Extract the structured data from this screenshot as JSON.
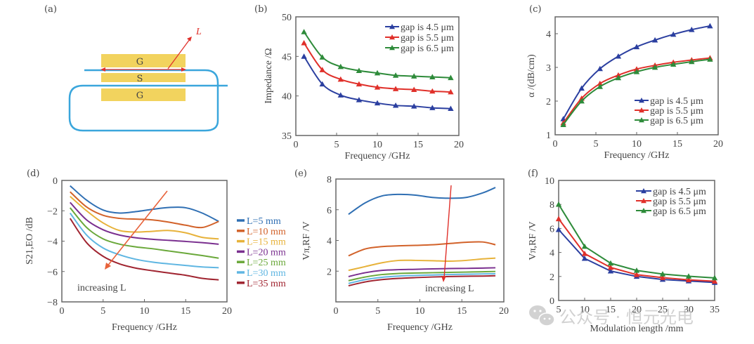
{
  "figure": {
    "panel_a": {
      "label": "(a)",
      "electrodes": [
        "G",
        "S",
        "G"
      ],
      "length_label": "L",
      "colors": {
        "electrode": "#f2d35e",
        "waveguide": "#3aa6dc",
        "arrow": "#e0302a"
      }
    },
    "watermark": {
      "text": "公众号 · 恒元光电",
      "icon": "wechat-icon"
    }
  },
  "chart_data": [
    {
      "id": "b",
      "panel_label": "(b)",
      "type": "line",
      "title": "",
      "xlabel": "Frequency /GHz",
      "ylabel": "Impedance /Ω",
      "xlim": [
        0,
        20
      ],
      "ylim": [
        35,
        50
      ],
      "xticks": [
        0,
        5,
        10,
        15,
        20
      ],
      "yticks": [
        35,
        40,
        45,
        50
      ],
      "legend_position": "top-right",
      "marker": "triangle",
      "x": [
        1,
        3.25,
        5.5,
        7.75,
        10,
        12.25,
        14.5,
        16.75,
        19
      ],
      "series": [
        {
          "name": "gap is 4.5 μm",
          "color": "#2b3fa0",
          "values": [
            45.0,
            41.5,
            40.1,
            39.5,
            39.1,
            38.8,
            38.7,
            38.5,
            38.4
          ]
        },
        {
          "name": "gap is 5.5 μm",
          "color": "#e0302a",
          "values": [
            46.7,
            43.3,
            42.1,
            41.5,
            41.1,
            40.9,
            40.8,
            40.6,
            40.5
          ]
        },
        {
          "name": "gap is 6.5 μm",
          "color": "#2e8b3a",
          "values": [
            48.1,
            44.9,
            43.7,
            43.2,
            42.9,
            42.6,
            42.5,
            42.4,
            42.3
          ]
        }
      ]
    },
    {
      "id": "c",
      "panel_label": "(c)",
      "type": "line",
      "title": "",
      "xlabel": "Frequency /GHz",
      "ylabel": "α /(dB/cm)",
      "xlim": [
        0,
        20
      ],
      "ylim": [
        1,
        4.5
      ],
      "xticks": [
        0,
        5,
        10,
        15,
        20
      ],
      "yticks": [
        1,
        2,
        3,
        4
      ],
      "legend_position": "bottom-right",
      "marker": "triangle",
      "x": [
        1,
        3.25,
        5.5,
        7.75,
        10,
        12.25,
        14.5,
        16.75,
        19
      ],
      "series": [
        {
          "name": "gap is 4.5 μm",
          "color": "#2b3fa0",
          "values": [
            1.47,
            2.38,
            2.96,
            3.33,
            3.61,
            3.81,
            3.98,
            4.12,
            4.23
          ]
        },
        {
          "name": "gap is 5.5 μm",
          "color": "#e0302a",
          "values": [
            1.35,
            2.08,
            2.52,
            2.77,
            2.95,
            3.06,
            3.15,
            3.22,
            3.28
          ]
        },
        {
          "name": "gap is 6.5 μm",
          "color": "#2e8b3a",
          "values": [
            1.3,
            2.0,
            2.43,
            2.69,
            2.87,
            3.0,
            3.09,
            3.17,
            3.24
          ]
        }
      ]
    },
    {
      "id": "d",
      "panel_label": "(d)",
      "type": "line",
      "title": "",
      "xlabel": "Frequency /GHz",
      "ylabel": "S21,EO /dB",
      "xlim": [
        0,
        20
      ],
      "ylim": [
        -8,
        0
      ],
      "xticks": [
        0,
        5,
        10,
        15,
        20
      ],
      "yticks": [
        -8,
        -6,
        -4,
        -2,
        0
      ],
      "legend_position": "outside-right",
      "annotation": "increasing L",
      "x": [
        1,
        3,
        5,
        7,
        9,
        11,
        13,
        15,
        17,
        19
      ],
      "series": [
        {
          "name": "L=5 mm",
          "color": "#2f6fb3",
          "values": [
            -0.35,
            -1.3,
            -1.95,
            -2.15,
            -2.05,
            -1.9,
            -1.78,
            -1.8,
            -2.15,
            -2.7
          ]
        },
        {
          "name": "L=10 mm",
          "color": "#d2622a",
          "values": [
            -0.75,
            -1.75,
            -2.3,
            -2.5,
            -2.55,
            -2.6,
            -2.75,
            -2.95,
            -3.1,
            -2.7
          ]
        },
        {
          "name": "L=15 mm",
          "color": "#e7b23a",
          "values": [
            -1.05,
            -2.0,
            -2.8,
            -3.3,
            -3.4,
            -3.35,
            -3.3,
            -3.45,
            -3.75,
            -3.85
          ]
        },
        {
          "name": "L=20 mm",
          "color": "#7a2f8f",
          "values": [
            -1.45,
            -2.6,
            -3.25,
            -3.6,
            -3.78,
            -3.88,
            -3.95,
            -4.02,
            -4.1,
            -4.2
          ]
        },
        {
          "name": "L=25 mm",
          "color": "#6aa83a",
          "values": [
            -1.8,
            -3.1,
            -3.85,
            -4.2,
            -4.38,
            -4.5,
            -4.65,
            -4.8,
            -4.95,
            -5.12
          ]
        },
        {
          "name": "L=30 mm",
          "color": "#5fb6e2",
          "values": [
            -2.15,
            -3.6,
            -4.45,
            -4.9,
            -5.2,
            -5.38,
            -5.5,
            -5.6,
            -5.7,
            -5.75
          ]
        },
        {
          "name": "L=35 mm",
          "color": "#a02430",
          "values": [
            -2.5,
            -4.1,
            -5.0,
            -5.5,
            -5.78,
            -5.95,
            -6.1,
            -6.25,
            -6.45,
            -6.55
          ]
        }
      ]
    },
    {
      "id": "e",
      "panel_label": "(e)",
      "type": "line",
      "title": "",
      "xlabel": "Frequency /GHz",
      "ylabel": "Vπ,RF /V",
      "xlim": [
        0,
        20
      ],
      "ylim": [
        0,
        8
      ],
      "xticks": [
        0,
        5,
        10,
        15,
        20
      ],
      "yticks": [
        2,
        4,
        6,
        8
      ],
      "legend_position": "shared-with-d",
      "annotation": "increasing L",
      "x": [
        1.5,
        3.5,
        5.5,
        7.5,
        9.5,
        11.5,
        13.5,
        15.5,
        17.5,
        19
      ],
      "series": [
        {
          "name": "L=5 mm",
          "color": "#2f6fb3",
          "values": [
            5.7,
            6.45,
            6.9,
            7.0,
            6.95,
            6.8,
            6.75,
            6.8,
            7.1,
            7.45
          ]
        },
        {
          "name": "L=10 mm",
          "color": "#d2622a",
          "values": [
            3.0,
            3.45,
            3.6,
            3.65,
            3.68,
            3.72,
            3.8,
            3.88,
            3.9,
            3.72
          ]
        },
        {
          "name": "L=15 mm",
          "color": "#e7b23a",
          "values": [
            2.05,
            2.3,
            2.55,
            2.7,
            2.7,
            2.68,
            2.65,
            2.7,
            2.8,
            2.85
          ]
        },
        {
          "name": "L=20 mm",
          "color": "#7a2f8f",
          "values": [
            1.65,
            1.9,
            2.05,
            2.1,
            2.12,
            2.15,
            2.17,
            2.18,
            2.2,
            2.22
          ]
        },
        {
          "name": "L=25 mm",
          "color": "#6aa83a",
          "values": [
            1.38,
            1.62,
            1.78,
            1.85,
            1.88,
            1.9,
            1.92,
            1.94,
            1.96,
            1.98
          ]
        },
        {
          "name": "L=30 mm",
          "color": "#5fb6e2",
          "values": [
            1.2,
            1.45,
            1.6,
            1.68,
            1.72,
            1.75,
            1.78,
            1.8,
            1.82,
            1.83
          ]
        },
        {
          "name": "L=35 mm",
          "color": "#a02430",
          "values": [
            1.05,
            1.3,
            1.45,
            1.53,
            1.58,
            1.62,
            1.65,
            1.67,
            1.68,
            1.7
          ]
        }
      ]
    },
    {
      "id": "f",
      "panel_label": "(f)",
      "type": "line",
      "title": "",
      "xlabel": "Modulation length /mm",
      "ylabel": "Vπ,RF /V",
      "xlim": [
        5,
        35
      ],
      "ylim": [
        0,
        10
      ],
      "xticks": [
        5,
        10,
        15,
        20,
        25,
        30,
        35
      ],
      "yticks": [
        0,
        2,
        4,
        6,
        8,
        10
      ],
      "legend_position": "top-right",
      "marker": "triangle",
      "x": [
        5,
        10,
        15,
        20,
        25,
        30,
        35
      ],
      "series": [
        {
          "name": "gap is 4.5 μm",
          "color": "#2b3fa0",
          "values": [
            5.9,
            3.5,
            2.45,
            2.0,
            1.75,
            1.62,
            1.5
          ]
        },
        {
          "name": "gap is 5.5 μm",
          "color": "#e0302a",
          "values": [
            6.8,
            3.9,
            2.75,
            2.15,
            1.9,
            1.72,
            1.6
          ]
        },
        {
          "name": "gap is 6.5 μm",
          "color": "#2e8b3a",
          "values": [
            8.0,
            4.5,
            3.1,
            2.5,
            2.2,
            2.02,
            1.88
          ]
        }
      ]
    }
  ]
}
